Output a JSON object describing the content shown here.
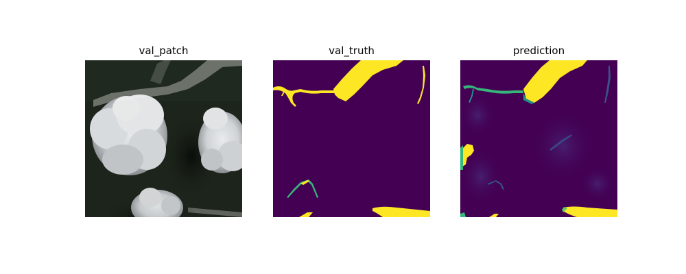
{
  "panels": [
    {
      "title": "val_patch"
    },
    {
      "title": "val_truth"
    },
    {
      "title": "prediction"
    }
  ],
  "colors": {
    "background": "#ffffff",
    "mask_negative": "#440154",
    "mask_positive": "#fde725",
    "mask_mid": "#35b779",
    "satellite_dark": "#1b2218",
    "cloud": "#e6e8ea",
    "river_gray": "#7a7f78"
  }
}
